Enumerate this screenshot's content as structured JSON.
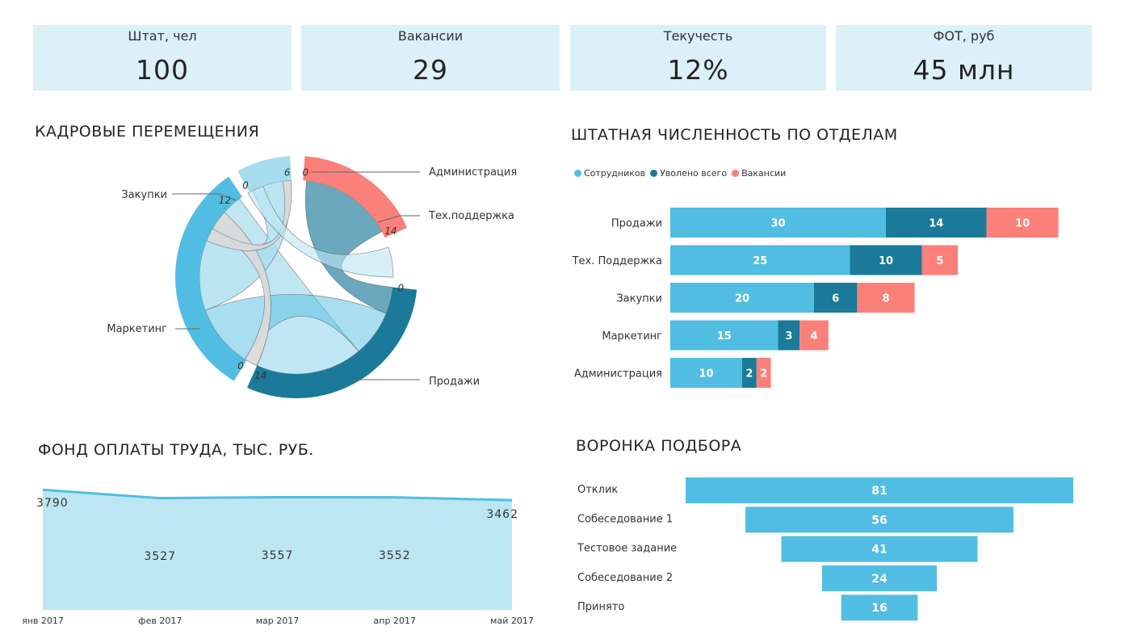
{
  "kpis": [
    {
      "label": "Штат, чел",
      "value": "100"
    },
    {
      "label": "Вакансии",
      "value": "29"
    },
    {
      "label": "Текучесть",
      "value": "12%"
    },
    {
      "label": "ФОТ, руб",
      "value": "45 млн"
    }
  ],
  "titles": {
    "chord": "КАДРОВЫЕ ПЕРЕМЕЩЕНИЯ",
    "headcount": "ШТАТНАЯ ЧИСЛЕННОСТЬ ПО ОТДЕЛАМ",
    "payroll": "ФОНД ОПЛАТЫ ТРУДА, ТЫС. РУБ.",
    "funnel": "ВОРОНКА ПОДБОРА"
  },
  "colors": {
    "employees": "#52bde2",
    "fired": "#1b7a99",
    "vacancies": "#fb8079",
    "kpi_bg": "#dbf0f7",
    "area_fill": "#bde6f3",
    "area_line": "#52bde2"
  },
  "chart_data": [
    {
      "type": "chord",
      "nodes": [
        {
          "name": "Администрация",
          "color": "#fb8079",
          "ticks": [
            "0"
          ]
        },
        {
          "name": "Тех.поддержка",
          "color": "#fb8079",
          "ticks": [
            "14"
          ]
        },
        {
          "name": "Продажи",
          "color": "#1b7a99",
          "ticks": [
            "0",
            "14"
          ]
        },
        {
          "name": "Маркетинг",
          "color": "#52bde2",
          "ticks": [
            "12",
            "0"
          ]
        },
        {
          "name": "Закупки",
          "color": "#a6dcee",
          "ticks": [
            "0",
            "6"
          ]
        }
      ]
    },
    {
      "type": "bar",
      "orientation": "horizontal",
      "stacked": true,
      "categories": [
        "Продажи",
        "Тех. Поддержка",
        "Закупки",
        "Маркетинг",
        "Администрация"
      ],
      "series": [
        {
          "name": "Сотрудников",
          "color": "#52bde2",
          "values": [
            30,
            25,
            20,
            15,
            10
          ]
        },
        {
          "name": "Уволено всего",
          "color": "#1b7a99",
          "values": [
            14,
            10,
            6,
            3,
            2
          ]
        },
        {
          "name": "Вакансии",
          "color": "#fb8079",
          "values": [
            10,
            5,
            8,
            4,
            2
          ]
        }
      ],
      "legend": "top-left"
    },
    {
      "type": "area",
      "x": [
        "янв 2017",
        "фев 2017",
        "мар 2017",
        "апр 2017",
        "май 2017"
      ],
      "values": [
        3790,
        3527,
        3557,
        3552,
        3462
      ],
      "ylim": [
        0,
        3900
      ]
    },
    {
      "type": "funnel",
      "categories": [
        "Отклик",
        "Собеседование 1",
        "Тестовое задание",
        "Собеседование 2",
        "Принято"
      ],
      "values": [
        81,
        56,
        41,
        24,
        16
      ]
    }
  ]
}
